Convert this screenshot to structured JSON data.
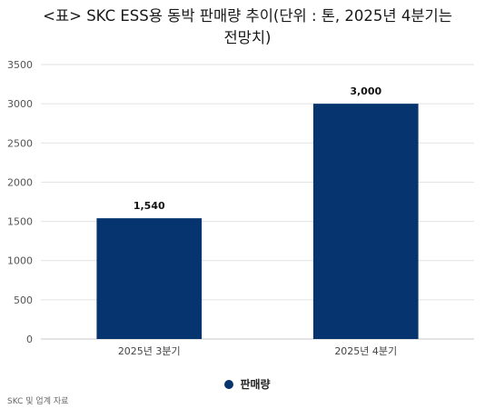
{
  "title_lines": [
    "<표> SKC ESS용 동박 판매량 추이(단위 : 톤, 2025년 4분기는",
    "전망치)"
  ],
  "source": "SKC 및 업계 자료",
  "colors": {
    "bar": "#06346e",
    "grid": "#e2e2e2"
  },
  "chart_data": {
    "type": "bar",
    "title": "<표> SKC ESS용 동박 판매량 추이(단위 : 톤, 2025년 4분기는 전망치)",
    "categories": [
      "2025년 3분기",
      "2025년 4분기"
    ],
    "series": [
      {
        "name": "판매량",
        "values": [
          1540,
          3000
        ],
        "labels": [
          "1,540",
          "3,000"
        ]
      }
    ],
    "ylim": [
      0,
      3500
    ],
    "yticks": [
      0,
      500,
      1000,
      1500,
      2000,
      2500,
      3000,
      3500
    ],
    "grid": true,
    "legend": "bottom-center"
  }
}
